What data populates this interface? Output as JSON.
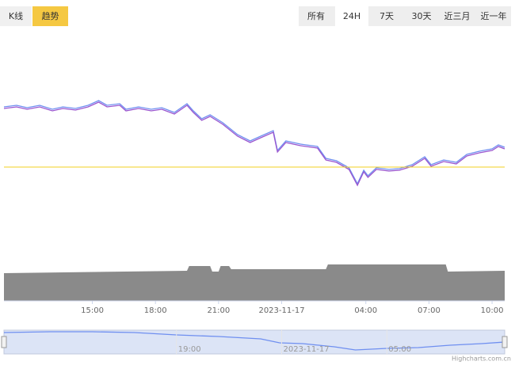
{
  "toolbar": {
    "left": [
      "K线",
      "趋势"
    ],
    "right": [
      "所有",
      "24H",
      "7天",
      "30天",
      "近三月",
      "近一年"
    ]
  },
  "chart_data": [
    {
      "type": "line",
      "x": [
        10.8,
        11.4,
        11.9,
        12.5,
        13.1,
        13.6,
        14.2,
        14.8,
        15.3,
        15.7,
        16.3,
        16.6,
        17.2,
        17.8,
        18.3,
        18.9,
        19.5,
        19.8,
        20.2,
        20.6,
        21.2,
        21.9,
        22.5,
        23.0,
        23.6,
        23.8,
        24.2,
        24.9,
        25.7,
        26.1,
        26.6,
        27.2,
        27.6,
        27.9,
        28.1,
        28.5,
        29.1,
        29.6,
        30.2,
        30.8,
        31.1,
        31.7,
        32.3,
        32.8,
        33.4,
        34.0,
        34.3,
        34.6
      ],
      "series": [
        {
          "color": "#6f8ff0",
          "values": [
            165,
            167,
            164,
            167,
            162,
            165,
            163,
            167,
            173,
            167,
            169,
            162,
            165,
            162,
            164,
            158,
            169,
            160,
            150,
            155,
            145,
            130,
            122,
            128,
            135,
            110,
            122,
            118,
            115,
            100,
            97,
            88,
            68,
            85,
            78,
            88,
            86,
            87,
            92,
            102,
            92,
            98,
            95,
            105,
            109,
            112,
            117,
            114
          ]
        },
        {
          "color": "#9a55cf",
          "values": [
            163,
            165,
            162,
            165,
            160,
            163,
            161,
            165,
            171,
            165,
            167,
            160,
            163,
            160,
            162,
            156,
            167,
            158,
            148,
            153,
            143,
            128,
            120,
            126,
            133,
            108,
            120,
            116,
            113,
            98,
            95,
            86,
            66,
            83,
            76,
            86,
            84,
            85,
            90,
            100,
            90,
            96,
            93,
            103,
            107,
            110,
            115,
            112
          ]
        }
      ],
      "xlim": [
        10.8,
        34.6
      ],
      "ylim": [
        0,
        260
      ],
      "reference_line": {
        "value": 89,
        "color": "#f0d020"
      }
    },
    {
      "type": "area",
      "x": [
        10.8,
        19.5,
        19.6,
        20.6,
        20.7,
        21.0,
        21.1,
        21.5,
        21.6,
        26.1,
        26.2,
        31.8,
        31.9,
        34.6
      ],
      "values": [
        35,
        38,
        44,
        44,
        37,
        37,
        44,
        44,
        40,
        40,
        46,
        46,
        37,
        38
      ],
      "color": "#8a8a8a",
      "xlim": [
        10.8,
        34.6
      ],
      "ylim": [
        0,
        60
      ],
      "xticks": [
        {
          "value": 15,
          "label": "15:00"
        },
        {
          "value": 18,
          "label": "18:00"
        },
        {
          "value": 21,
          "label": "21:00"
        },
        {
          "value": 24,
          "label": "2023-11-17"
        },
        {
          "value": 28,
          "label": "04:00"
        },
        {
          "value": 31,
          "label": "07:00"
        },
        {
          "value": 34,
          "label": "10:00"
        }
      ]
    },
    {
      "type": "line",
      "x": [
        10.8,
        13,
        15,
        17,
        19,
        21,
        23,
        23.9,
        25,
        26.5,
        27.5,
        29,
        30.5,
        32,
        33.5,
        34.6
      ],
      "values": [
        27,
        28,
        28,
        27,
        24,
        22,
        19,
        14,
        13,
        9,
        5,
        7,
        8,
        11,
        13,
        15
      ],
      "color": "#6f8ff0",
      "xlim": [
        10.8,
        34.6
      ],
      "ylim": [
        0,
        30
      ],
      "xticks": [
        {
          "value": 19,
          "label": "19:00"
        },
        {
          "value": 24,
          "label": "2023-11-17"
        },
        {
          "value": 29,
          "label": "05:00"
        }
      ]
    }
  ],
  "credit": "Highcharts.com.cn"
}
